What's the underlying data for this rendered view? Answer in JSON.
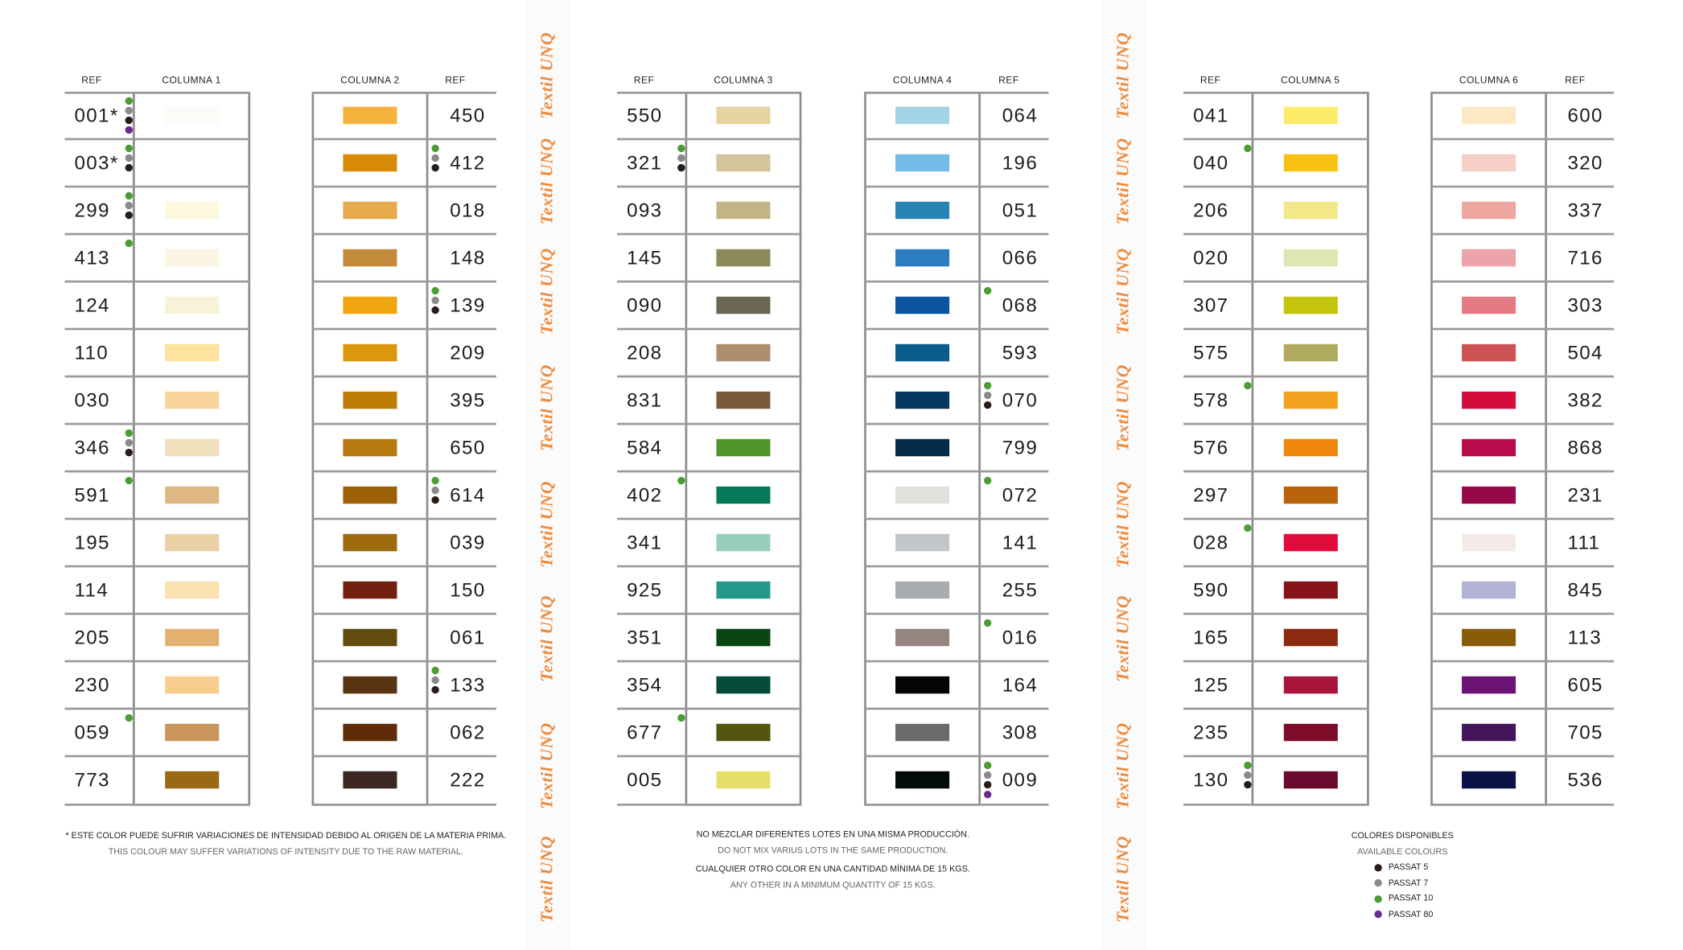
{
  "headers": {
    "ref": "REF",
    "col1": "COLUMNA 1",
    "col2": "COLUMNA 2",
    "col3": "COLUMNA 3",
    "col4": "COLUMNA 4",
    "col5": "COLUMNA 5",
    "col6": "COLUMNA 6"
  },
  "watermark": "Textil UNQ",
  "dot_colors": {
    "p5": "#2a1c18",
    "p7": "#8a8a8a",
    "p10": "#4a9e34",
    "p80": "#6a2a8c"
  },
  "columns": [
    {
      "name": "col1",
      "refs_side": "left",
      "rows": [
        {
          "ref": "001*",
          "color": "#fbfbf8",
          "dots": [
            "p10",
            "p7",
            "p5",
            "p80"
          ]
        },
        {
          "ref": "003*",
          "color": "#ffffff",
          "dots": [
            "p10",
            "p7",
            "p5"
          ]
        },
        {
          "ref": "299",
          "color": "#fdf8de",
          "dots": [
            "p10",
            "p7",
            "p5"
          ]
        },
        {
          "ref": "413",
          "color": "#fdf5e4",
          "dots": [
            "p10"
          ]
        },
        {
          "ref": "124",
          "color": "#f8f2d8",
          "dots": []
        },
        {
          "ref": "110",
          "color": "#fde39c",
          "dots": []
        },
        {
          "ref": "030",
          "color": "#f9d49a",
          "dots": []
        },
        {
          "ref": "346",
          "color": "#f0dfbc",
          "dots": [
            "p10",
            "p7",
            "p5"
          ]
        },
        {
          "ref": "591",
          "color": "#dfb783",
          "dots": [
            "p10"
          ]
        },
        {
          "ref": "195",
          "color": "#ead1a4",
          "dots": []
        },
        {
          "ref": "114",
          "color": "#fbe0b0",
          "dots": []
        },
        {
          "ref": "205",
          "color": "#e3b070",
          "dots": []
        },
        {
          "ref": "230",
          "color": "#f8cd8c",
          "dots": []
        },
        {
          "ref": "059",
          "color": "#c9955a",
          "dots": [
            "p10"
          ]
        },
        {
          "ref": "773",
          "color": "#9a6816",
          "dots": []
        }
      ]
    },
    {
      "name": "col2",
      "refs_side": "right",
      "rows": [
        {
          "ref": "450",
          "color": "#f5b23c",
          "dots": []
        },
        {
          "ref": "412",
          "color": "#d68a06",
          "dots": [
            "p10",
            "p7",
            "p5"
          ]
        },
        {
          "ref": "018",
          "color": "#e6a94c",
          "dots": []
        },
        {
          "ref": "148",
          "color": "#c48a3c",
          "dots": []
        },
        {
          "ref": "139",
          "color": "#f0a410",
          "dots": [
            "p10",
            "p7",
            "p5"
          ]
        },
        {
          "ref": "209",
          "color": "#dc980c",
          "dots": []
        },
        {
          "ref": "395",
          "color": "#bc7c06",
          "dots": []
        },
        {
          "ref": "650",
          "color": "#b87a10",
          "dots": []
        },
        {
          "ref": "614",
          "color": "#9c6006",
          "dots": [
            "p10",
            "p7",
            "p5"
          ]
        },
        {
          "ref": "039",
          "color": "#9e6a10",
          "dots": []
        },
        {
          "ref": "150",
          "color": "#742010",
          "dots": []
        },
        {
          "ref": "061",
          "color": "#624c0e",
          "dots": []
        },
        {
          "ref": "133",
          "color": "#583410",
          "dots": [
            "p10",
            "p7",
            "p5"
          ]
        },
        {
          "ref": "062",
          "color": "#5e2c06",
          "dots": []
        },
        {
          "ref": "222",
          "color": "#3c2822",
          "dots": []
        }
      ]
    },
    {
      "name": "col3",
      "refs_side": "left",
      "rows": [
        {
          "ref": "550",
          "color": "#e6d3a0",
          "dots": []
        },
        {
          "ref": "321",
          "color": "#d3c49c",
          "dots": [
            "p10",
            "p7",
            "p5"
          ]
        },
        {
          "ref": "093",
          "color": "#c2b486",
          "dots": []
        },
        {
          "ref": "145",
          "color": "#8c8a5a",
          "dots": []
        },
        {
          "ref": "090",
          "color": "#6a6652",
          "dots": []
        },
        {
          "ref": "208",
          "color": "#ae8e6e",
          "dots": []
        },
        {
          "ref": "831",
          "color": "#7a5a3c",
          "dots": []
        },
        {
          "ref": "584",
          "color": "#4e962c",
          "dots": []
        },
        {
          "ref": "402",
          "color": "#08785a",
          "dots": [
            "p10"
          ]
        },
        {
          "ref": "341",
          "color": "#96cebc",
          "dots": []
        },
        {
          "ref": "925",
          "color": "#24988a",
          "dots": []
        },
        {
          "ref": "351",
          "color": "#0a4612",
          "dots": []
        },
        {
          "ref": "354",
          "color": "#064a3a",
          "dots": []
        },
        {
          "ref": "677",
          "color": "#52560e",
          "dots": [
            "p10"
          ]
        },
        {
          "ref": "005",
          "color": "#e6e06a",
          "dots": []
        }
      ]
    },
    {
      "name": "col4",
      "refs_side": "right",
      "rows": [
        {
          "ref": "064",
          "color": "#a4d2e6",
          "dots": []
        },
        {
          "ref": "196",
          "color": "#74bce6",
          "dots": []
        },
        {
          "ref": "051",
          "color": "#2884b2",
          "dots": []
        },
        {
          "ref": "066",
          "color": "#2c7cc2",
          "dots": []
        },
        {
          "ref": "068",
          "color": "#0a54a0",
          "dots": [
            "p10"
          ]
        },
        {
          "ref": "593",
          "color": "#0a5c8c",
          "dots": []
        },
        {
          "ref": "070",
          "color": "#063860",
          "dots": [
            "p10",
            "p7",
            "p5"
          ]
        },
        {
          "ref": "799",
          "color": "#062c4a",
          "dots": []
        },
        {
          "ref": "072",
          "color": "#e2e0da",
          "dots": [
            "p10"
          ]
        },
        {
          "ref": "141",
          "color": "#c2c6ca",
          "dots": []
        },
        {
          "ref": "255",
          "color": "#a8acb0",
          "dots": []
        },
        {
          "ref": "016",
          "color": "#968480",
          "dots": [
            "p10"
          ]
        },
        {
          "ref": "164",
          "color": "#040404",
          "dots": []
        },
        {
          "ref": "308",
          "color": "#6a6a6a",
          "dots": []
        },
        {
          "ref": "009",
          "color": "#040c08",
          "dots": [
            "p10",
            "p7",
            "p5",
            "p80"
          ]
        }
      ]
    },
    {
      "name": "col5",
      "refs_side": "left",
      "rows": [
        {
          "ref": "041",
          "color": "#fcec6a",
          "dots": []
        },
        {
          "ref": "040",
          "color": "#f8c214",
          "dots": [
            "p10"
          ]
        },
        {
          "ref": "206",
          "color": "#f2e88a",
          "dots": []
        },
        {
          "ref": "020",
          "color": "#dee6b4",
          "dots": []
        },
        {
          "ref": "307",
          "color": "#c4c40c",
          "dots": []
        },
        {
          "ref": "575",
          "color": "#b0aa5e",
          "dots": []
        },
        {
          "ref": "578",
          "color": "#f2a21c",
          "dots": [
            "p10"
          ]
        },
        {
          "ref": "576",
          "color": "#ee860c",
          "dots": []
        },
        {
          "ref": "297",
          "color": "#b8620a",
          "dots": []
        },
        {
          "ref": "028",
          "color": "#e20c3c",
          "dots": [
            "p10"
          ]
        },
        {
          "ref": "590",
          "color": "#861418",
          "dots": []
        },
        {
          "ref": "165",
          "color": "#8c2a10",
          "dots": []
        },
        {
          "ref": "125",
          "color": "#a8143a",
          "dots": []
        },
        {
          "ref": "235",
          "color": "#7c0c2a",
          "dots": []
        },
        {
          "ref": "130",
          "color": "#6a0a2e",
          "dots": [
            "p10",
            "p7",
            "p5"
          ]
        }
      ]
    },
    {
      "name": "col6",
      "refs_side": "right",
      "rows": [
        {
          "ref": "600",
          "color": "#fde8c4",
          "dots": []
        },
        {
          "ref": "320",
          "color": "#f6d0c6",
          "dots": []
        },
        {
          "ref": "337",
          "color": "#eea6a0",
          "dots": []
        },
        {
          "ref": "716",
          "color": "#eca4aa",
          "dots": []
        },
        {
          "ref": "303",
          "color": "#e47a84",
          "dots": []
        },
        {
          "ref": "504",
          "color": "#cc5254",
          "dots": []
        },
        {
          "ref": "382",
          "color": "#d40c3c",
          "dots": []
        },
        {
          "ref": "868",
          "color": "#b80c4a",
          "dots": []
        },
        {
          "ref": "231",
          "color": "#96084a",
          "dots": []
        },
        {
          "ref": "111",
          "color": "#f6eae8",
          "dots": []
        },
        {
          "ref": "845",
          "color": "#b2b2d6",
          "dots": []
        },
        {
          "ref": "113",
          "color": "#8a5c0a",
          "dots": []
        },
        {
          "ref": "605",
          "color": "#6c1274",
          "dots": []
        },
        {
          "ref": "705",
          "color": "#44145a",
          "dots": []
        },
        {
          "ref": "536",
          "color": "#0a1246",
          "dots": []
        }
      ]
    }
  ],
  "notes": {
    "left_es": "* ESTE COLOR PUEDE SUFRIR VARIACIONES DE INTENSIDAD DEBIDO AL ORIGEN DE LA MATERIA PRIMA.",
    "left_en": "THIS COLOUR MAY SUFFER VARIATIONS OF INTENSITY DUE TO THE RAW MATERIAL.",
    "mid_es1": "NO MEZCLAR DIFERENTES LOTES EN UNA MISMA PRODUCCIÓN.",
    "mid_en1": "DO NOT MIX VARIUS LOTS IN THE SAME PRODUCTION.",
    "mid_es2": "CUALQUIER OTRO COLOR EN UNA CANTIDAD MÍNIMA DE 15 KGS.",
    "mid_en2": "ANY OTHER IN A MINIMUM QUANTITY OF 15 KGS."
  },
  "legend": {
    "title": "COLORES DISPONIBLES",
    "subtitle": "AVAILABLE COLOURS",
    "items": [
      {
        "key": "p5",
        "label": "PASSAT  5"
      },
      {
        "key": "p7",
        "label": "PASSAT  7"
      },
      {
        "key": "p10",
        "label": "PASSAT  10"
      },
      {
        "key": "p80",
        "label": "PASSAT 80"
      }
    ]
  }
}
